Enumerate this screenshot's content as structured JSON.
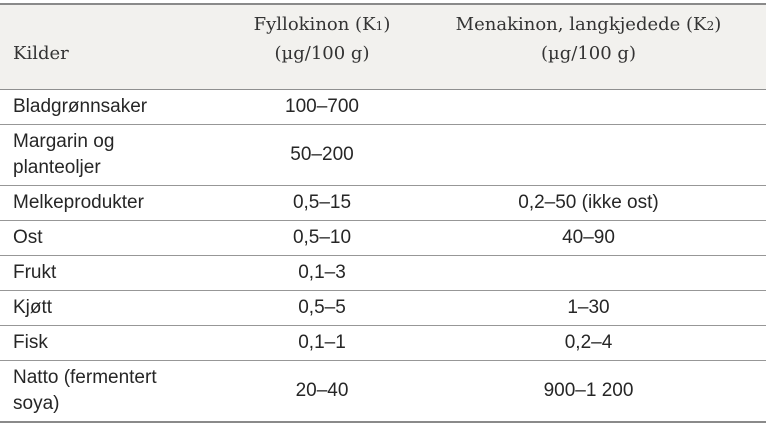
{
  "colors": {
    "header_background": "#f2f1ee",
    "outer_rule": "#8a8a8a",
    "inner_rule": "#979797",
    "text": "#262626",
    "header_text": "#333333"
  },
  "header": {
    "kilder": "Kilder",
    "k1": {
      "name_prefix": "Fyllokinon (K",
      "subscript": "1",
      "name_suffix": ")",
      "unit": "(µg/100 g)"
    },
    "k2": {
      "name_prefix": "Menakinon, langkjedede (K",
      "subscript": "2",
      "name_suffix": ")",
      "unit": "(µg/100 g)"
    }
  },
  "rows": [
    {
      "source": "Bladgrønnsaker",
      "k1": "100–700",
      "k2": ""
    },
    {
      "source": "Margarin og\nplanteoljer",
      "k1": "50–200",
      "k2": ""
    },
    {
      "source": "Melkeprodukter",
      "k1": "0,5–15",
      "k2": "0,2–50 (ikke ost)"
    },
    {
      "source": "Ost",
      "k1": "0,5–10",
      "k2": "40–90"
    },
    {
      "source": "Frukt",
      "k1": "0,1–3",
      "k2": ""
    },
    {
      "source": "Kjøtt",
      "k1": "0,5–5",
      "k2": "1–30"
    },
    {
      "source": "Fisk",
      "k1": "0,1–1",
      "k2": "0,2–4"
    },
    {
      "source": "Natto (fermentert\nsoya)",
      "k1": "20–40",
      "k2": "900–1 200"
    }
  ],
  "chart_data": {
    "type": "table",
    "title": "",
    "columns": [
      "Kilder",
      "Fyllokinon (K1) (µg/100 g)",
      "Menakinon, langkjedede (K2) (µg/100 g)"
    ],
    "rows": [
      [
        "Bladgrønnsaker",
        "100–700",
        ""
      ],
      [
        "Margarin og planteoljer",
        "50–200",
        ""
      ],
      [
        "Melkeprodukter",
        "0,5–15",
        "0,2–50 (ikke ost)"
      ],
      [
        "Ost",
        "0,5–10",
        "40–90"
      ],
      [
        "Frukt",
        "0,1–3",
        ""
      ],
      [
        "Kjøtt",
        "0,5–5",
        "1–30"
      ],
      [
        "Fisk",
        "0,1–1",
        "0,2–4"
      ],
      [
        "Natto (fermentert soya)",
        "20–40",
        "900–1 200"
      ]
    ]
  }
}
